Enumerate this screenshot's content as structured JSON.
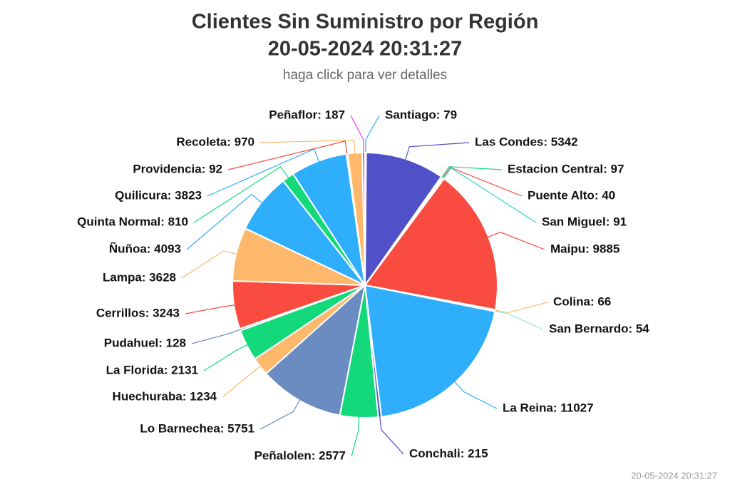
{
  "chart_data": {
    "type": "pie",
    "title": "Clientes Sin Suministro por Región",
    "title_line2": "20-05-2024 20:31:27",
    "subtitle": "haga click para ver detalles",
    "footer": "20-05-2024 20:31:27",
    "values": [
      79,
      5342,
      97,
      40,
      91,
      9885,
      66,
      54,
      11027,
      215,
      2577,
      5751,
      1234,
      2131,
      128,
      3243,
      3628,
      4093,
      810,
      3823,
      92,
      970,
      187
    ],
    "value_labels": [
      "Santiago: 79",
      "Las Condes: 5342",
      "Estacion Central: 97",
      "Puente Alto: 40",
      "San Miguel: 91",
      "Maipu: 9885",
      "Colina: 66",
      "San Bernardo: 54",
      "La Reina: 11027",
      "Conchali: 215",
      "Peñalolen: 2577",
      "Lo Barnechea: 5751",
      "Huechuraba: 1234",
      "La Florida: 2131",
      "Pudahuel: 128",
      "Cerrillos: 3243",
      "Lampa: 3628",
      "Ñuñoa: 4093",
      "Quinta Normal: 810",
      "Quilicura: 3823",
      "Providencia: 92",
      "Recoleta: 970",
      "Peñaflor: 187"
    ],
    "colors": [
      "#2eaefb",
      "#5050c8",
      "#14d97a",
      "#f94b40",
      "#2fd6c8",
      "#f94b40",
      "#fdb86b",
      "#8fe8e0",
      "#2eaefb",
      "#5050c8",
      "#14d97a",
      "#6a8cc0",
      "#fdb86b",
      "#14d97a",
      "#6a8cc0",
      "#f94b40",
      "#fdb86b",
      "#2eaefb",
      "#14d97a",
      "#2eaefb",
      "#f94b40",
      "#fdb86b",
      "#e040fb"
    ]
  }
}
